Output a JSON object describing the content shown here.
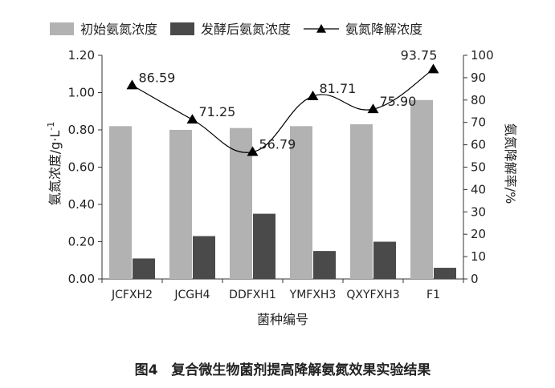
{
  "chart_data": {
    "type": "bar+line",
    "categories": [
      "JCFXH2",
      "JCGH4",
      "DDFXH1",
      "YMFXH3",
      "QXYFXH3",
      "F1"
    ],
    "series": [
      {
        "name": "初始氨氮浓度",
        "type": "bar",
        "axis": "left",
        "color": "#b2b2b2",
        "values": [
          0.82,
          0.8,
          0.81,
          0.82,
          0.83,
          0.96
        ]
      },
      {
        "name": "发酵后氨氮浓度",
        "type": "bar",
        "axis": "left",
        "color": "#4a4a4a",
        "values": [
          0.11,
          0.23,
          0.35,
          0.15,
          0.2,
          0.06
        ]
      },
      {
        "name": "氨氮降解浓度",
        "type": "line",
        "axis": "right",
        "color": "#000000",
        "values": [
          86.59,
          71.25,
          56.79,
          81.71,
          75.9,
          93.75
        ],
        "labels": [
          "86.59",
          "71.25",
          "56.79",
          "81.71",
          "75.90",
          "93.75"
        ]
      }
    ],
    "xlabel": "菌种编号",
    "ylabel_left": "氨氮浓度/g·L",
    "ylabel_left_sup": "-1",
    "ylabel_right": "氨氮降解率/%",
    "ylim_left": [
      0,
      1.2
    ],
    "yticks_left": [
      "0.00",
      "0.20",
      "0.40",
      "0.60",
      "0.80",
      "1.00",
      "1.20"
    ],
    "ylim_right": [
      0,
      100
    ],
    "yticks_right": [
      "0",
      "10",
      "20",
      "30",
      "40",
      "50",
      "60",
      "70",
      "80",
      "90",
      "100"
    ],
    "grid": false,
    "legend_position": "top",
    "caption": "图4　复合微生物菌剂提高降解氨氮效果实验结果"
  }
}
